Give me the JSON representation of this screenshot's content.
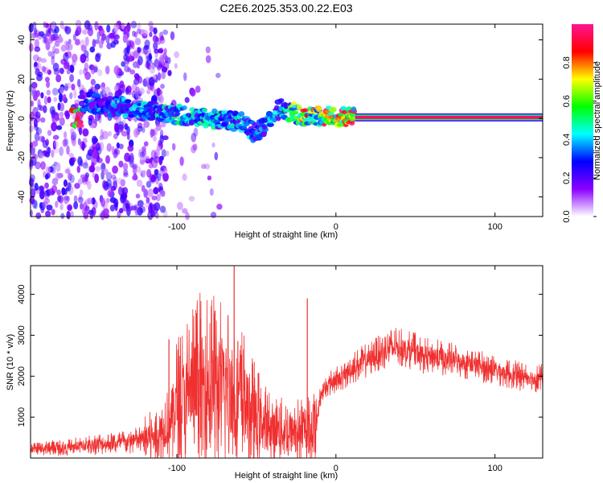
{
  "figure_title": "C2E6.2025.353.00.22.E03",
  "chart_data": [
    {
      "type": "heatmap",
      "title": "C2E6.2025.353.00.22.E03",
      "xlabel": "Height of straight line (km)",
      "ylabel": "Frequency (Hz)",
      "xlim": [
        -192,
        130
      ],
      "ylim": [
        -50,
        48
      ],
      "x_ticks": [
        -100,
        0,
        100
      ],
      "y_ticks": [
        -40,
        -20,
        0,
        20,
        40
      ],
      "colorbar": {
        "label": "Normalized spectral amplitude",
        "range": [
          0,
          1
        ],
        "ticks": [
          "0.0",
          "0.2",
          "0.4",
          "0.6",
          "0.8"
        ],
        "colors": [
          "#ffffff",
          "#8b00ff",
          "#0000ff",
          "#00ffff",
          "#00ff00",
          "#ffff00",
          "#ff0000",
          "#ff1493"
        ]
      },
      "signal_track": [
        {
          "x": -160,
          "y": 9,
          "amp": 0.3
        },
        {
          "x": -140,
          "y": 6,
          "amp": 0.35
        },
        {
          "x": -120,
          "y": 4,
          "amp": 0.4
        },
        {
          "x": -100,
          "y": 2,
          "amp": 0.45
        },
        {
          "x": -80,
          "y": 0,
          "amp": 0.45
        },
        {
          "x": -60,
          "y": -2,
          "amp": 0.4
        },
        {
          "x": -50,
          "y": -8,
          "amp": 0.35
        },
        {
          "x": -35,
          "y": 5,
          "amp": 0.4
        },
        {
          "x": -20,
          "y": 1,
          "amp": 0.75
        },
        {
          "x": 0,
          "y": 1,
          "amp": 0.8
        },
        {
          "x": 10,
          "y": 0.5,
          "amp": 0.9
        },
        {
          "x": 130,
          "y": 0.5,
          "amp": 0.95
        }
      ],
      "grid": false
    },
    {
      "type": "line",
      "xlabel": "Height of straight line (km)",
      "ylabel": "SNR (10 * v/v)",
      "xlim": [
        -192,
        130
      ],
      "ylim": [
        0,
        4700
      ],
      "x_ticks": [
        -100,
        0,
        100
      ],
      "y_ticks": [
        1000,
        2000,
        3000,
        4000
      ],
      "series": [
        {
          "color": "#f03030",
          "x": [
            -192,
            -180,
            -170,
            -160,
            -150,
            -140,
            -130,
            -120,
            -110,
            -105,
            -100,
            -95,
            -90,
            -85,
            -80,
            -75,
            -70,
            -65,
            -60,
            -55,
            -50,
            -45,
            -40,
            -35,
            -30,
            -25,
            -20,
            -15,
            -12,
            -10,
            -5,
            0,
            5,
            10,
            15,
            20,
            25,
            30,
            35,
            40,
            45,
            50,
            55,
            60,
            65,
            70,
            75,
            80,
            85,
            90,
            95,
            100,
            105,
            110,
            115,
            120,
            125,
            130
          ],
          "y": [
            200,
            250,
            250,
            300,
            350,
            350,
            400,
            450,
            600,
            900,
            1300,
            1500,
            1700,
            1800,
            1800,
            1750,
            1700,
            1600,
            1500,
            1200,
            1000,
            800,
            700,
            650,
            650,
            650,
            650,
            700,
            900,
            1500,
            1800,
            1900,
            2000,
            2200,
            2300,
            2400,
            2500,
            2600,
            2700,
            2700,
            2650,
            2600,
            2500,
            2500,
            2450,
            2400,
            2400,
            2350,
            2300,
            2250,
            2200,
            2150,
            2100,
            2050,
            2000,
            2000,
            1950,
            1950
          ]
        }
      ],
      "annotation_peaks": [
        {
          "x": -85,
          "y": 3400
        },
        {
          "x": -76,
          "y": 3600
        },
        {
          "x": -64,
          "y": 4700
        },
        {
          "x": -18,
          "y": 3900
        },
        {
          "x": -105,
          "y": 2900
        }
      ],
      "grid": false
    }
  ]
}
